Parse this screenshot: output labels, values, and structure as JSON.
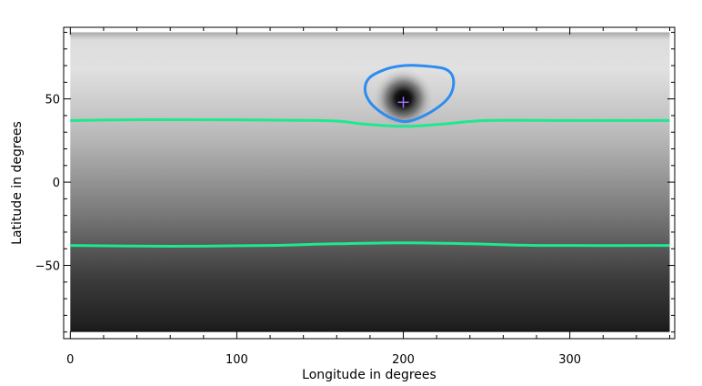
{
  "chart_data": {
    "type": "heatmap",
    "title": "",
    "xlabel": "Longitude in degrees",
    "ylabel": "Latitude in degrees",
    "xlim": [
      -4,
      363
    ],
    "ylim": [
      -94,
      93
    ],
    "xticks": [
      0,
      100,
      200,
      300
    ],
    "xtick_labels": [
      "0",
      "100",
      "200",
      "300"
    ],
    "yticks": [
      -50,
      0,
      50
    ],
    "ytick_labels": [
      "−50",
      "0",
      "50"
    ],
    "x_minor_step": 20,
    "y_minor_step": 10,
    "grid": false,
    "background": {
      "description_values": "grayscale field increasing from south to north",
      "lat_range": [
        -90,
        90
      ],
      "lon_range": [
        0,
        360
      ],
      "colormap": [
        "#202020",
        "#e2e2e2"
      ]
    },
    "dark_spot": {
      "center": {
        "lon": 200,
        "lat": 48
      },
      "color": "#000000"
    },
    "marker": {
      "lon": 200,
      "lat": 48,
      "symbol": "+",
      "color": "#a070ff"
    },
    "contours": [
      {
        "color": "#1ee890",
        "points": [
          [
            0,
            37
          ],
          [
            50,
            37.5
          ],
          [
            150,
            37
          ],
          [
            175,
            35
          ],
          [
            200,
            33.5
          ],
          [
            225,
            35
          ],
          [
            250,
            37
          ],
          [
            300,
            37
          ],
          [
            360,
            37
          ]
        ]
      },
      {
        "color": "#1ee890",
        "points": [
          [
            0,
            -38
          ],
          [
            60,
            -38.5
          ],
          [
            120,
            -38
          ],
          [
            160,
            -37
          ],
          [
            200,
            -36.5
          ],
          [
            240,
            -37
          ],
          [
            280,
            -38
          ],
          [
            360,
            -38
          ]
        ]
      },
      {
        "color": "#2d8cf0",
        "closed": true,
        "points": [
          [
            210,
            70
          ],
          [
            225,
            68
          ],
          [
            230,
            62
          ],
          [
            228,
            52
          ],
          [
            218,
            43
          ],
          [
            205,
            37
          ],
          [
            197,
            37
          ],
          [
            188,
            41
          ],
          [
            180,
            48
          ],
          [
            177,
            56
          ],
          [
            180,
            63
          ],
          [
            190,
            68
          ],
          [
            200,
            70
          ]
        ]
      }
    ]
  }
}
